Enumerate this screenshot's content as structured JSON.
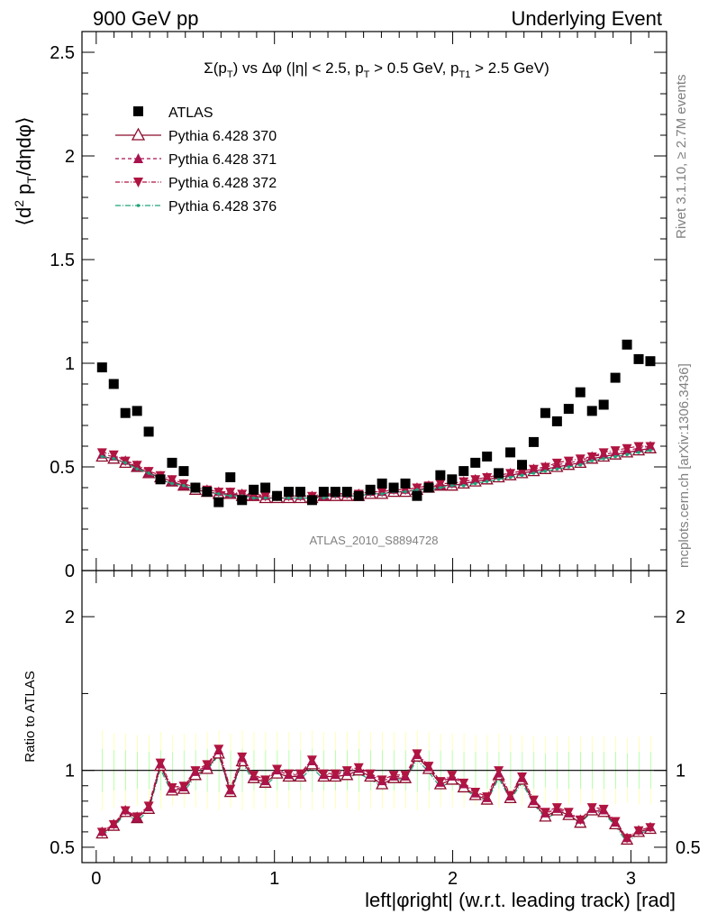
{
  "header": {
    "left": "900 GeV pp",
    "right": "Underlying Event"
  },
  "side": {
    "rivet": "Rivet 3.1.10, ≥ 2.7M events",
    "mcplots": "mcplots.cern.ch [arXiv:1306.3436]"
  },
  "watermark": "ATLAS_2010_S8894728",
  "colors": {
    "data": "#000000",
    "p370": "#8b0a2a",
    "p371": "#a8124e",
    "p372": "#b01440",
    "p376": "#1fa37a",
    "band_inner": "#99ff99",
    "band_outer": "#ffff99"
  },
  "chart_data": [
    {
      "type": "scatter",
      "title_parts": {
        "sigma": "Σ(p",
        "sub_T": "T",
        "vs": ") vs Δφ (|η| < 2.5, p",
        "sub_T2": "T",
        "cut1": " > 0.5 GeV, p",
        "sub_T1": "T1",
        "cut2": " > 2.5 GeV)"
      },
      "ylabel_parts": {
        "open": "⟨d",
        "sup2": "2",
        "mid": " p",
        "subT": "T",
        "close": "/dηdφ⟩"
      },
      "ylim": [
        0,
        2.6
      ],
      "xlim": [
        -0.08,
        3.2
      ],
      "yticks": [
        "0.5",
        "1",
        "1.5",
        "2",
        "2.5"
      ],
      "y_zero_label": "0",
      "legend_position": "top-left",
      "x": [
        0.0327,
        0.0982,
        0.1636,
        0.2291,
        0.2945,
        0.36,
        0.4254,
        0.4909,
        0.5563,
        0.6218,
        0.6872,
        0.7527,
        0.8181,
        0.8836,
        0.949,
        1.0145,
        1.08,
        1.1454,
        1.2109,
        1.2763,
        1.3418,
        1.4072,
        1.4727,
        1.5381,
        1.6036,
        1.669,
        1.7345,
        1.7999,
        1.8654,
        1.9308,
        1.9963,
        2.0617,
        2.1272,
        2.1926,
        2.2581,
        2.3235,
        2.389,
        2.4544,
        2.5199,
        2.5853,
        2.6508,
        2.7162,
        2.7817,
        2.8471,
        2.9126,
        2.978,
        3.0435,
        3.1089
      ],
      "series": [
        {
          "name": "ATLAS",
          "marker": "square",
          "values": [
            0.98,
            0.9,
            0.76,
            0.77,
            0.67,
            0.44,
            0.52,
            0.48,
            0.4,
            0.38,
            0.33,
            0.45,
            0.34,
            0.39,
            0.4,
            0.36,
            0.38,
            0.38,
            0.34,
            0.38,
            0.38,
            0.38,
            0.36,
            0.39,
            0.42,
            0.4,
            0.42,
            0.36,
            0.4,
            0.46,
            0.44,
            0.48,
            0.52,
            0.55,
            0.47,
            0.57,
            0.51,
            0.62,
            0.76,
            0.72,
            0.78,
            0.86,
            0.77,
            0.8,
            0.93,
            1.09,
            1.02,
            1.01
          ]
        },
        {
          "name": "Pythia 6.428 370",
          "marker": "triangle-open",
          "values": [
            0.55,
            0.54,
            0.52,
            0.5,
            0.47,
            0.45,
            0.43,
            0.41,
            0.39,
            0.38,
            0.37,
            0.37,
            0.36,
            0.36,
            0.35,
            0.35,
            0.35,
            0.35,
            0.35,
            0.36,
            0.36,
            0.36,
            0.36,
            0.37,
            0.37,
            0.38,
            0.38,
            0.39,
            0.4,
            0.41,
            0.41,
            0.42,
            0.43,
            0.44,
            0.45,
            0.46,
            0.47,
            0.48,
            0.49,
            0.5,
            0.51,
            0.52,
            0.54,
            0.55,
            0.56,
            0.57,
            0.58,
            0.59
          ]
        },
        {
          "name": "Pythia 6.428 371",
          "marker": "triangle-up",
          "values": [
            0.56,
            0.55,
            0.53,
            0.5,
            0.47,
            0.45,
            0.43,
            0.41,
            0.4,
            0.39,
            0.38,
            0.37,
            0.37,
            0.36,
            0.36,
            0.36,
            0.36,
            0.36,
            0.36,
            0.36,
            0.37,
            0.37,
            0.37,
            0.38,
            0.38,
            0.39,
            0.39,
            0.4,
            0.41,
            0.41,
            0.42,
            0.43,
            0.44,
            0.45,
            0.46,
            0.47,
            0.48,
            0.49,
            0.5,
            0.51,
            0.52,
            0.53,
            0.55,
            0.56,
            0.57,
            0.58,
            0.59,
            0.6
          ]
        },
        {
          "name": "Pythia 6.428 372",
          "marker": "triangle-down",
          "values": [
            0.57,
            0.56,
            0.53,
            0.51,
            0.48,
            0.46,
            0.44,
            0.42,
            0.4,
            0.39,
            0.38,
            0.38,
            0.37,
            0.37,
            0.36,
            0.36,
            0.36,
            0.36,
            0.36,
            0.37,
            0.37,
            0.37,
            0.37,
            0.38,
            0.38,
            0.39,
            0.39,
            0.4,
            0.41,
            0.42,
            0.42,
            0.43,
            0.44,
            0.45,
            0.46,
            0.47,
            0.48,
            0.49,
            0.5,
            0.52,
            0.53,
            0.54,
            0.55,
            0.57,
            0.58,
            0.59,
            0.6,
            0.6
          ]
        },
        {
          "name": "Pythia 6.428 376",
          "marker": "dot",
          "values": [
            0.55,
            0.54,
            0.52,
            0.49,
            0.47,
            0.44,
            0.42,
            0.41,
            0.39,
            0.38,
            0.37,
            0.36,
            0.36,
            0.35,
            0.35,
            0.35,
            0.35,
            0.35,
            0.35,
            0.35,
            0.36,
            0.36,
            0.36,
            0.37,
            0.37,
            0.38,
            0.38,
            0.39,
            0.39,
            0.4,
            0.41,
            0.41,
            0.42,
            0.43,
            0.44,
            0.45,
            0.46,
            0.47,
            0.48,
            0.49,
            0.5,
            0.51,
            0.53,
            0.54,
            0.55,
            0.56,
            0.57,
            0.58
          ]
        }
      ]
    },
    {
      "type": "line",
      "ylabel": "Ratio to ATLAS",
      "xlabel": "left|φright| (w.r.t. leading track) [rad]",
      "ylim": [
        0.4,
        2.3
      ],
      "yticks": [
        "0.5",
        "1",
        "2"
      ],
      "xticks": [
        "0",
        "1",
        "2",
        "3"
      ],
      "reference_line": 1,
      "uncertainty_inner": [
        0.86,
        0.87,
        0.87,
        0.88,
        0.88,
        0.87,
        0.88,
        0.87,
        0.87,
        0.86,
        0.86,
        0.87,
        0.86,
        0.87,
        0.87,
        0.87,
        0.87,
        0.87,
        0.86,
        0.87,
        0.87,
        0.87,
        0.86,
        0.87,
        0.87,
        0.87,
        0.87,
        0.86,
        0.87,
        0.87,
        0.87,
        0.88,
        0.88,
        0.88,
        0.88,
        0.88,
        0.88,
        0.88,
        0.89,
        0.88,
        0.88,
        0.88,
        0.88,
        0.88,
        0.88,
        0.89,
        0.88,
        0.88
      ],
      "uncertainty_outer": [
        0.74,
        0.76,
        0.76,
        0.77,
        0.77,
        0.75,
        0.77,
        0.76,
        0.76,
        0.75,
        0.74,
        0.76,
        0.74,
        0.75,
        0.75,
        0.75,
        0.75,
        0.75,
        0.74,
        0.75,
        0.75,
        0.75,
        0.74,
        0.75,
        0.75,
        0.75,
        0.75,
        0.74,
        0.75,
        0.76,
        0.76,
        0.76,
        0.77,
        0.77,
        0.76,
        0.77,
        0.77,
        0.78,
        0.78,
        0.78,
        0.78,
        0.78,
        0.78,
        0.78,
        0.78,
        0.79,
        0.78,
        0.78
      ],
      "series": [
        {
          "name": "Pythia 6.428 370",
          "values": [
            0.59,
            0.64,
            0.73,
            0.69,
            0.75,
            1.03,
            0.87,
            0.88,
            0.97,
            1.01,
            1.11,
            0.86,
            1.06,
            0.95,
            0.92,
            0.98,
            0.96,
            0.96,
            1.04,
            0.96,
            0.96,
            0.97,
            1.0,
            0.96,
            0.91,
            0.95,
            0.95,
            1.09,
            1.01,
            0.91,
            0.94,
            0.89,
            0.84,
            0.81,
            0.97,
            0.82,
            0.94,
            0.79,
            0.7,
            0.74,
            0.71,
            0.66,
            0.74,
            0.73,
            0.65,
            0.55,
            0.6,
            0.62
          ]
        },
        {
          "name": "Pythia 6.428 371",
          "values": [
            0.6,
            0.65,
            0.74,
            0.69,
            0.76,
            1.04,
            0.88,
            0.89,
            0.99,
            1.03,
            1.13,
            0.87,
            1.08,
            0.96,
            0.93,
            1.0,
            0.97,
            0.97,
            1.06,
            0.97,
            0.97,
            0.99,
            1.01,
            0.97,
            0.93,
            0.96,
            0.96,
            1.1,
            1.02,
            0.92,
            0.96,
            0.91,
            0.85,
            0.82,
            0.98,
            0.83,
            0.95,
            0.8,
            0.72,
            0.75,
            0.72,
            0.68,
            0.75,
            0.74,
            0.66,
            0.56,
            0.61,
            0.63
          ]
        },
        {
          "name": "Pythia 6.428 372",
          "values": [
            0.6,
            0.65,
            0.74,
            0.7,
            0.77,
            1.05,
            0.89,
            0.9,
            1.0,
            1.04,
            1.14,
            0.88,
            1.09,
            0.97,
            0.94,
            1.01,
            0.98,
            0.98,
            1.07,
            0.98,
            0.98,
            1.0,
            1.02,
            0.98,
            0.94,
            0.97,
            0.97,
            1.11,
            1.03,
            0.93,
            0.97,
            0.92,
            0.86,
            0.83,
            1.0,
            0.84,
            0.96,
            0.81,
            0.73,
            0.76,
            0.73,
            0.68,
            0.76,
            0.75,
            0.67,
            0.56,
            0.61,
            0.63
          ]
        },
        {
          "name": "Pythia 6.428 376",
          "values": [
            0.58,
            0.63,
            0.72,
            0.67,
            0.74,
            1.01,
            0.85,
            0.86,
            0.96,
            1.0,
            1.1,
            0.85,
            1.05,
            0.93,
            0.9,
            0.97,
            0.94,
            0.94,
            1.02,
            0.94,
            0.94,
            0.95,
            0.98,
            0.94,
            0.9,
            0.94,
            0.94,
            1.07,
            0.99,
            0.89,
            0.93,
            0.88,
            0.83,
            0.8,
            0.95,
            0.81,
            0.92,
            0.78,
            0.69,
            0.72,
            0.7,
            0.66,
            0.73,
            0.72,
            0.64,
            0.53,
            0.59,
            0.61
          ]
        }
      ]
    }
  ]
}
